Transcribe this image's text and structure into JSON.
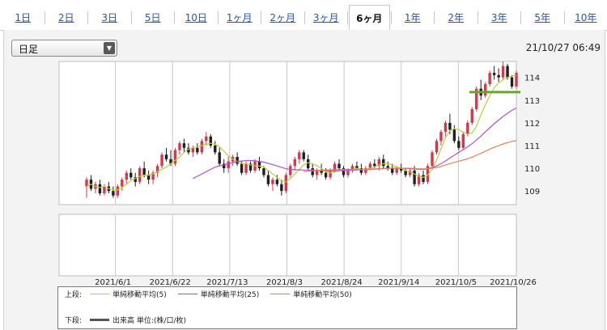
{
  "tabs": [
    {
      "label": "1日",
      "active": false
    },
    {
      "label": "2日",
      "active": false
    },
    {
      "label": "3日",
      "active": false
    },
    {
      "label": "5日",
      "active": false
    },
    {
      "label": "10日",
      "active": false
    },
    {
      "label": "1ヶ月",
      "active": false
    },
    {
      "label": "2ヶ月",
      "active": false
    },
    {
      "label": "3ヶ月",
      "active": false
    },
    {
      "label": "6ヶ月",
      "active": true
    },
    {
      "label": "1年",
      "active": false
    },
    {
      "label": "2年",
      "active": false
    },
    {
      "label": "3年",
      "active": false
    },
    {
      "label": "5年",
      "active": false
    },
    {
      "label": "10年",
      "active": false
    }
  ],
  "period_select": {
    "value": "日足"
  },
  "timestamp": "21/10/27 06:49",
  "legend": {
    "upper_label": "上段:",
    "lower_label": "下段:",
    "ma5": "単純移動平均(5)",
    "ma25": "単純移動平均(25)",
    "ma50": "単純移動平均(50)",
    "volume": "出来高 単位:(株/口/枚)"
  },
  "colors": {
    "up": "#d9364a",
    "down": "#1f1f1f",
    "ma5": "#b9cf3d",
    "ma25": "#b24fd6",
    "ma50": "#e0805a",
    "level_line": "#6aa531",
    "grid": "#c8c8c8"
  },
  "chart_data": {
    "type": "candlestick",
    "x_tick_labels": [
      "2021/6/1",
      "2021/6/22",
      "2021/7/13",
      "2021/8/3",
      "2021/8/24",
      "2021/9/14",
      "2021/10/5",
      "2021/10/26"
    ],
    "y_ticks": [
      109,
      110,
      111,
      112,
      113,
      114
    ],
    "ylim": [
      108.4,
      114.7
    ],
    "horizontal_line": 113.35,
    "candles": [
      [
        109.2,
        109.6,
        108.7,
        109.5
      ],
      [
        109.5,
        109.7,
        109.0,
        109.1
      ],
      [
        109.1,
        109.4,
        108.9,
        109.3
      ],
      [
        109.3,
        109.5,
        108.8,
        108.9
      ],
      [
        108.9,
        109.3,
        108.8,
        109.2
      ],
      [
        109.2,
        109.4,
        108.9,
        109.0
      ],
      [
        109.0,
        109.2,
        108.7,
        108.8
      ],
      [
        108.8,
        109.3,
        108.7,
        109.2
      ],
      [
        109.2,
        109.6,
        109.0,
        109.5
      ],
      [
        109.5,
        109.9,
        109.3,
        109.8
      ],
      [
        109.8,
        110.0,
        109.5,
        109.6
      ],
      [
        109.6,
        109.8,
        109.2,
        109.4
      ],
      [
        109.4,
        110.1,
        109.3,
        110.0
      ],
      [
        110.0,
        110.3,
        109.6,
        109.7
      ],
      [
        109.7,
        109.9,
        109.3,
        109.5
      ],
      [
        109.5,
        109.9,
        109.3,
        109.8
      ],
      [
        109.8,
        110.2,
        109.6,
        110.1
      ],
      [
        110.1,
        110.7,
        110.0,
        110.6
      ],
      [
        110.6,
        110.9,
        110.3,
        110.4
      ],
      [
        110.4,
        110.8,
        110.1,
        110.2
      ],
      [
        110.2,
        110.9,
        110.1,
        110.8
      ],
      [
        110.8,
        111.2,
        110.6,
        111.1
      ],
      [
        111.1,
        111.3,
        110.7,
        110.9
      ],
      [
        110.9,
        111.1,
        110.6,
        110.7
      ],
      [
        110.7,
        111.0,
        110.5,
        110.9
      ],
      [
        110.9,
        111.1,
        110.6,
        110.7
      ],
      [
        110.7,
        111.3,
        110.6,
        111.2
      ],
      [
        111.2,
        111.6,
        111.0,
        111.4
      ],
      [
        111.4,
        111.5,
        110.9,
        111.0
      ],
      [
        111.0,
        111.2,
        110.6,
        110.7
      ],
      [
        110.7,
        110.9,
        110.1,
        110.2
      ],
      [
        110.2,
        110.4,
        109.8,
        110.0
      ],
      [
        110.0,
        110.5,
        109.8,
        110.3
      ],
      [
        110.3,
        110.6,
        110.1,
        110.5
      ],
      [
        110.5,
        110.7,
        110.1,
        110.2
      ],
      [
        110.2,
        110.3,
        109.7,
        109.8
      ],
      [
        109.8,
        110.3,
        109.7,
        110.2
      ],
      [
        110.2,
        110.3,
        109.8,
        109.9
      ],
      [
        109.9,
        110.4,
        109.8,
        110.3
      ],
      [
        110.3,
        110.5,
        109.9,
        110.0
      ],
      [
        110.0,
        110.1,
        109.6,
        109.7
      ],
      [
        109.7,
        109.9,
        109.2,
        109.3
      ],
      [
        109.3,
        109.6,
        109.0,
        109.5
      ],
      [
        109.5,
        109.7,
        109.2,
        109.3
      ],
      [
        109.3,
        109.5,
        108.8,
        109.0
      ],
      [
        109.0,
        109.8,
        108.9,
        109.7
      ],
      [
        109.7,
        110.2,
        109.6,
        110.1
      ],
      [
        110.1,
        110.5,
        109.9,
        110.4
      ],
      [
        110.4,
        110.8,
        110.2,
        110.7
      ],
      [
        110.7,
        110.8,
        110.3,
        110.4
      ],
      [
        110.4,
        110.6,
        109.9,
        110.0
      ],
      [
        110.0,
        110.2,
        109.6,
        109.7
      ],
      [
        109.7,
        110.0,
        109.5,
        109.9
      ],
      [
        109.9,
        110.2,
        109.7,
        109.8
      ],
      [
        109.8,
        110.0,
        109.5,
        109.6
      ],
      [
        109.6,
        110.0,
        109.5,
        109.9
      ],
      [
        109.9,
        110.3,
        109.8,
        110.2
      ],
      [
        110.2,
        110.4,
        109.9,
        110.0
      ],
      [
        110.0,
        110.1,
        109.6,
        109.7
      ],
      [
        109.7,
        110.0,
        109.6,
        109.9
      ],
      [
        109.9,
        110.2,
        109.8,
        110.1
      ],
      [
        110.1,
        110.3,
        109.9,
        110.0
      ],
      [
        110.0,
        110.2,
        109.7,
        109.8
      ],
      [
        109.8,
        110.1,
        109.7,
        110.0
      ],
      [
        110.0,
        110.3,
        109.9,
        110.2
      ],
      [
        110.2,
        110.4,
        110.0,
        110.1
      ],
      [
        110.1,
        110.5,
        109.9,
        110.4
      ],
      [
        110.4,
        110.6,
        110.0,
        110.1
      ],
      [
        110.1,
        110.3,
        109.9,
        110.0
      ],
      [
        110.0,
        110.2,
        109.7,
        109.8
      ],
      [
        109.8,
        110.1,
        109.7,
        110.0
      ],
      [
        110.0,
        110.2,
        109.8,
        109.9
      ],
      [
        109.9,
        110.0,
        109.6,
        109.7
      ],
      [
        109.7,
        110.0,
        109.6,
        109.9
      ],
      [
        109.9,
        110.1,
        109.2,
        109.3
      ],
      [
        109.3,
        109.8,
        109.2,
        109.7
      ],
      [
        109.7,
        109.9,
        109.3,
        109.4
      ],
      [
        109.4,
        110.2,
        109.3,
        110.1
      ],
      [
        110.1,
        110.8,
        110.0,
        110.7
      ],
      [
        110.7,
        111.3,
        110.6,
        111.2
      ],
      [
        111.2,
        111.7,
        111.0,
        111.6
      ],
      [
        111.6,
        112.1,
        111.4,
        112.0
      ],
      [
        112.0,
        112.4,
        111.5,
        111.7
      ],
      [
        111.7,
        111.9,
        111.1,
        111.2
      ],
      [
        111.2,
        111.4,
        110.8,
        110.9
      ],
      [
        110.9,
        111.6,
        110.8,
        111.5
      ],
      [
        111.5,
        112.1,
        111.4,
        112.0
      ],
      [
        112.0,
        112.7,
        111.9,
        112.6
      ],
      [
        112.6,
        113.6,
        112.5,
        113.5
      ],
      [
        113.5,
        113.9,
        113.0,
        113.2
      ],
      [
        113.2,
        113.8,
        113.1,
        113.7
      ],
      [
        113.7,
        114.3,
        113.6,
        114.2
      ],
      [
        114.2,
        114.5,
        113.9,
        114.1
      ],
      [
        114.1,
        114.4,
        113.8,
        114.0
      ],
      [
        114.0,
        114.7,
        113.9,
        114.5
      ],
      [
        114.5,
        114.6,
        113.9,
        114.0
      ],
      [
        114.0,
        114.1,
        113.5,
        113.6
      ],
      [
        113.6,
        114.3,
        113.5,
        114.2
      ]
    ],
    "series": [
      {
        "name": "単純移動平均(5)",
        "values": [
          109.2,
          109.3,
          109.2,
          109.15,
          109.2,
          109.1,
          109.05,
          109.05,
          109.15,
          109.3,
          109.45,
          109.55,
          109.65,
          109.7,
          109.7,
          109.75,
          109.85,
          109.95,
          110.05,
          110.2,
          110.35,
          110.5,
          110.7,
          110.85,
          110.9,
          110.95,
          111.0,
          111.05,
          111.1,
          111.05,
          110.95,
          110.75,
          110.55,
          110.4,
          110.3,
          110.2,
          110.2,
          110.15,
          110.1,
          110.1,
          110.05,
          109.9,
          109.75,
          109.6,
          109.45,
          109.4,
          109.55,
          109.75,
          109.95,
          110.15,
          110.25,
          110.2,
          110.1,
          110.0,
          109.85,
          109.8,
          109.85,
          109.9,
          109.9,
          109.9,
          109.95,
          110.0,
          109.95,
          109.95,
          110.0,
          110.05,
          110.15,
          110.2,
          110.2,
          110.15,
          110.05,
          110.0,
          109.9,
          109.85,
          109.75,
          109.65,
          109.6,
          109.7,
          109.95,
          110.35,
          110.85,
          111.35,
          111.65,
          111.75,
          111.7,
          111.6,
          111.5,
          111.55,
          111.85,
          112.35,
          112.8,
          113.2,
          113.55,
          113.75,
          113.9,
          114.0,
          114.05,
          114.1
        ]
      },
      {
        "name": "単純移動平均(25)",
        "values": [
          null,
          null,
          null,
          null,
          null,
          null,
          null,
          null,
          null,
          null,
          null,
          null,
          null,
          null,
          null,
          null,
          null,
          null,
          null,
          null,
          null,
          null,
          null,
          null,
          109.55,
          109.65,
          109.75,
          109.85,
          109.95,
          110.05,
          110.1,
          110.15,
          110.2,
          110.25,
          110.3,
          110.32,
          110.34,
          110.34,
          110.33,
          110.3,
          110.27,
          110.22,
          110.16,
          110.1,
          110.04,
          109.98,
          109.95,
          109.94,
          109.93,
          109.92,
          109.92,
          109.92,
          109.91,
          109.9,
          109.89,
          109.88,
          109.88,
          109.89,
          109.9,
          109.91,
          109.92,
          109.93,
          109.94,
          109.95,
          109.96,
          109.97,
          109.98,
          109.99,
          110.0,
          110.0,
          110.0,
          110.0,
          109.99,
          109.98,
          109.97,
          109.96,
          109.95,
          109.98,
          110.03,
          110.1,
          110.2,
          110.32,
          110.45,
          110.58,
          110.7,
          110.82,
          110.94,
          111.08,
          111.24,
          111.42,
          111.6,
          111.78,
          111.96,
          112.12,
          112.28,
          112.42,
          112.55,
          112.65
        ]
      },
      {
        "name": "単純移動平均(50)",
        "values": [
          null,
          null,
          null,
          null,
          null,
          null,
          null,
          null,
          null,
          null,
          null,
          null,
          null,
          null,
          null,
          null,
          null,
          null,
          null,
          null,
          null,
          null,
          null,
          null,
          null,
          null,
          null,
          null,
          null,
          null,
          null,
          null,
          null,
          null,
          null,
          null,
          null,
          null,
          null,
          null,
          null,
          null,
          null,
          null,
          null,
          null,
          null,
          null,
          null,
          109.85,
          109.87,
          109.89,
          109.9,
          109.91,
          109.92,
          109.93,
          109.94,
          109.95,
          109.95,
          109.95,
          109.95,
          109.95,
          109.95,
          109.95,
          109.95,
          109.96,
          109.97,
          109.98,
          109.99,
          110.0,
          110.0,
          110.0,
          110.0,
          110.0,
          109.99,
          109.98,
          109.97,
          109.98,
          110.0,
          110.03,
          110.08,
          110.14,
          110.2,
          110.26,
          110.31,
          110.36,
          110.42,
          110.49,
          110.57,
          110.66,
          110.75,
          110.84,
          110.92,
          111.0,
          111.07,
          111.13,
          111.18,
          111.22
        ]
      }
    ],
    "volume_panel": {
      "bars": []
    }
  }
}
